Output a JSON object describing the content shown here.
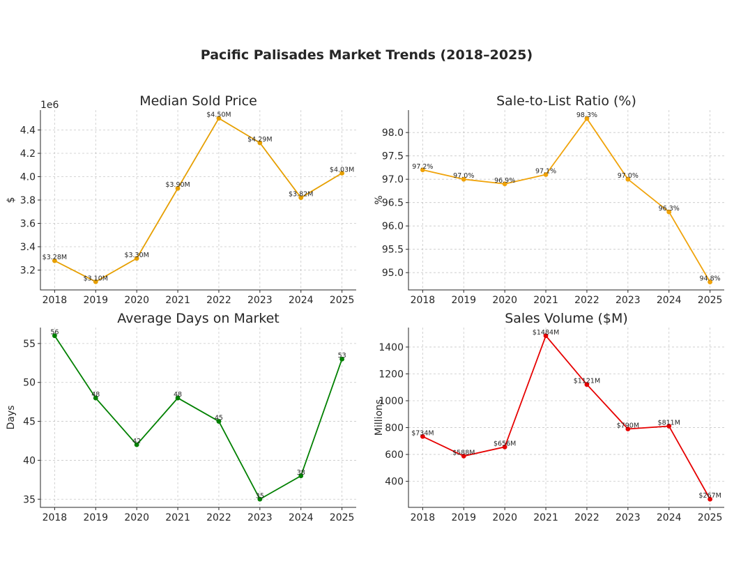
{
  "figure": {
    "title": "Pacific Palisades Market Trends (2018–2025)"
  },
  "chart_data": [
    {
      "type": "line",
      "title": "Median Sold Price",
      "ylabel": "$",
      "offset_text": "1e6",
      "color": "#e69f00",
      "x": [
        "2018",
        "2019",
        "2020",
        "2021",
        "2022",
        "2023",
        "2024",
        "2025"
      ],
      "values": [
        3.28,
        3.1,
        3.3,
        3.9,
        4.5,
        4.29,
        3.82,
        4.03
      ],
      "point_labels": [
        "$3.28M",
        "$3.10M",
        "$3.30M",
        "$3.90M",
        "$4.50M",
        "$4.29M",
        "$3.82M",
        "$4.03M"
      ],
      "yticks": [
        "3.2",
        "3.4",
        "3.6",
        "3.8",
        "4.0",
        "4.2",
        "4.4"
      ],
      "ylim": [
        3.03,
        4.57
      ],
      "grid": true
    },
    {
      "type": "line",
      "title": "Sale-to-List Ratio (%)",
      "ylabel": "%",
      "color": "#f0a30a",
      "x": [
        "2018",
        "2019",
        "2020",
        "2021",
        "2022",
        "2023",
        "2024",
        "2025"
      ],
      "values": [
        97.2,
        97.0,
        96.9,
        97.1,
        98.3,
        97.0,
        96.3,
        94.8
      ],
      "point_labels": [
        "97.2%",
        "97.0%",
        "96.9%",
        "97.1%",
        "98.3%",
        "97.0%",
        "96.3%",
        "94.8%"
      ],
      "yticks": [
        "95.0",
        "95.5",
        "96.0",
        "96.5",
        "97.0",
        "97.5",
        "98.0"
      ],
      "ylim": [
        94.63,
        98.48
      ],
      "grid": true
    },
    {
      "type": "line",
      "title": "Average Days on Market",
      "ylabel": "Days",
      "color": "#008000",
      "x": [
        "2018",
        "2019",
        "2020",
        "2021",
        "2022",
        "2023",
        "2024",
        "2025"
      ],
      "values": [
        56,
        48,
        42,
        48,
        45,
        35,
        38,
        53
      ],
      "point_labels": [
        "56",
        "48",
        "42",
        "48",
        "45",
        "35",
        "38",
        "53"
      ],
      "yticks": [
        "35",
        "40",
        "45",
        "50",
        "55"
      ],
      "ylim": [
        33.95,
        57.05
      ],
      "grid": true
    },
    {
      "type": "line",
      "title": "Sales Volume ($M)",
      "ylabel": "Millions",
      "color": "#e60000",
      "x": [
        "2018",
        "2019",
        "2020",
        "2021",
        "2022",
        "2023",
        "2024",
        "2025"
      ],
      "values": [
        734,
        588,
        656,
        1484,
        1121,
        790,
        811,
        267
      ],
      "point_labels": [
        "$734M",
        "$588M",
        "$656M",
        "$1484M",
        "$1121M",
        "$790M",
        "$811M",
        "$267M"
      ],
      "yticks": [
        "400",
        "600",
        "800",
        "1000",
        "1200",
        "1400"
      ],
      "ylim": [
        206,
        1545
      ],
      "grid": true
    }
  ]
}
